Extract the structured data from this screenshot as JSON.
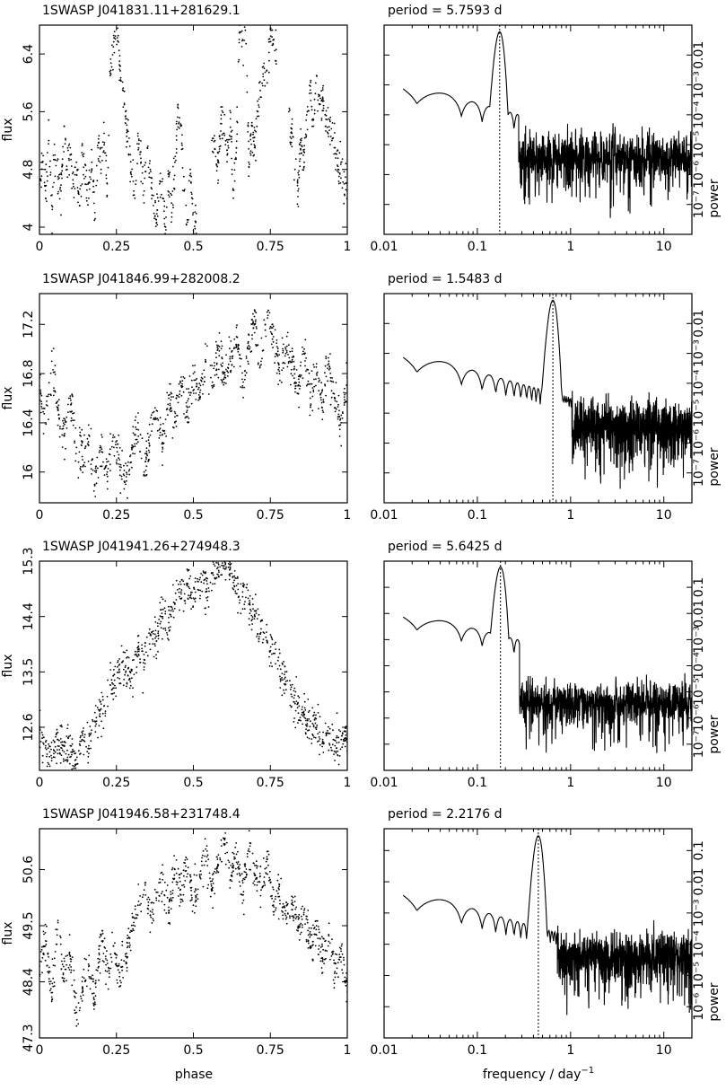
{
  "figure": {
    "xlabel_left": "phase",
    "xlabel_right": "frequency / day",
    "xlabel_right_exponent": "−1",
    "ylabel_left": "flux",
    "ylabel_right": "power"
  },
  "chart_data": [
    {
      "type": "scatter",
      "title": "1SWASP J041831.11+281629.1",
      "xlabel": "",
      "ylabel": "flux",
      "xlim": [
        0,
        1
      ],
      "ylim": [
        3.9,
        6.8
      ],
      "xticks": [
        0,
        0.25,
        0.5,
        0.75,
        1
      ],
      "xtick_labels": [
        "0",
        "0.25",
        "0.5",
        "0.75",
        "1"
      ],
      "yticks": [
        4,
        4.8,
        5.6,
        6.4
      ],
      "ytick_labels": [
        "4",
        "4.8",
        "5.6",
        "6.4"
      ],
      "points": [
        [
          0.0,
          4.6
        ],
        [
          0.01,
          4.9
        ],
        [
          0.02,
          4.4
        ],
        [
          0.03,
          5.2
        ],
        [
          0.04,
          4.3
        ],
        [
          0.05,
          5.0
        ],
        [
          0.06,
          4.7
        ],
        [
          0.07,
          4.5
        ],
        [
          0.08,
          5.4
        ],
        [
          0.09,
          4.8
        ],
        [
          0.1,
          5.1
        ],
        [
          0.11,
          4.6
        ],
        [
          0.12,
          4.9
        ],
        [
          0.13,
          4.3
        ],
        [
          0.14,
          5.0
        ],
        [
          0.15,
          4.7
        ],
        [
          0.16,
          4.4
        ],
        [
          0.17,
          4.9
        ],
        [
          0.18,
          4.2
        ],
        [
          0.19,
          5.1
        ],
        [
          0.2,
          4.8
        ],
        [
          0.21,
          5.3
        ],
        [
          0.22,
          4.6
        ],
        [
          0.23,
          6.1
        ],
        [
          0.24,
          6.5
        ],
        [
          0.25,
          6.9
        ],
        [
          0.26,
          6.3
        ],
        [
          0.27,
          5.9
        ],
        [
          0.28,
          5.5
        ],
        [
          0.29,
          5.0
        ],
        [
          0.3,
          4.7
        ],
        [
          0.31,
          4.4
        ],
        [
          0.32,
          5.3
        ],
        [
          0.33,
          4.9
        ],
        [
          0.34,
          4.5
        ],
        [
          0.35,
          5.1
        ],
        [
          0.36,
          4.8
        ],
        [
          0.37,
          4.3
        ],
        [
          0.38,
          4.1
        ],
        [
          0.39,
          4.6
        ],
        [
          0.4,
          4.4
        ],
        [
          0.41,
          4.0
        ],
        [
          0.42,
          4.7
        ],
        [
          0.43,
          4.2
        ],
        [
          0.44,
          4.9
        ],
        [
          0.45,
          5.7
        ],
        [
          0.46,
          5.4
        ],
        [
          0.47,
          4.5
        ],
        [
          0.48,
          4.1
        ],
        [
          0.49,
          4.8
        ],
        [
          0.5,
          3.95
        ],
        [
          0.57,
          5.2
        ],
        [
          0.58,
          4.9
        ],
        [
          0.59,
          5.5
        ],
        [
          0.6,
          5.3
        ],
        [
          0.61,
          5.0
        ],
        [
          0.62,
          5.5
        ],
        [
          0.63,
          4.4
        ],
        [
          0.64,
          5.1
        ],
        [
          0.65,
          6.8
        ],
        [
          0.66,
          6.6
        ],
        [
          0.67,
          6.9
        ],
        [
          0.68,
          4.9
        ],
        [
          0.69,
          5.4
        ],
        [
          0.7,
          5.1
        ],
        [
          0.71,
          5.6
        ],
        [
          0.72,
          5.8
        ],
        [
          0.73,
          6.2
        ],
        [
          0.74,
          6.0
        ],
        [
          0.75,
          6.8
        ],
        [
          0.76,
          6.6
        ],
        [
          0.82,
          5.3
        ],
        [
          0.83,
          4.8
        ],
        [
          0.84,
          4.5
        ],
        [
          0.85,
          5.2
        ],
        [
          0.86,
          4.9
        ],
        [
          0.87,
          5.6
        ],
        [
          0.88,
          5.9
        ],
        [
          0.89,
          5.4
        ],
        [
          0.9,
          6.1
        ],
        [
          0.91,
          5.7
        ],
        [
          0.92,
          5.8
        ],
        [
          0.93,
          5.4
        ],
        [
          0.94,
          5.5
        ],
        [
          0.95,
          5.2
        ],
        [
          0.96,
          5.1
        ],
        [
          0.97,
          4.8
        ],
        [
          0.98,
          4.9
        ],
        [
          0.99,
          4.6
        ],
        [
          1.0,
          4.5
        ]
      ]
    },
    {
      "type": "line",
      "title": "period =   5.7593 d",
      "xlabel": "",
      "ylabel": "power",
      "xscale": "log",
      "yscale": "log",
      "xlim": [
        0.01,
        20
      ],
      "ylim": [
        1e-08,
        0.1
      ],
      "period_days": 5.7593,
      "peak_frequency": 0.1736,
      "xticks": [
        0.01,
        0.1,
        1,
        10
      ],
      "xtick_labels": [
        "0.01",
        "0.1",
        "1",
        "10"
      ],
      "yticks": [
        1e-07,
        1e-06,
        1e-05,
        0.0001,
        0.001,
        0.01
      ],
      "ytick_labels": [
        "10⁻⁷",
        "10⁻⁶",
        "10⁻⁵",
        "10⁻⁴",
        "10⁻³",
        "0.01"
      ]
    },
    {
      "type": "scatter",
      "title": "1SWASP J041846.99+282008.2",
      "xlabel": "",
      "ylabel": "flux",
      "xlim": [
        0,
        1
      ],
      "ylim": [
        15.75,
        17.45
      ],
      "xticks": [
        0,
        0.25,
        0.5,
        0.75,
        1
      ],
      "xtick_labels": [
        "0",
        "0.25",
        "0.5",
        "0.75",
        "1"
      ],
      "yticks": [
        16,
        16.4,
        16.8,
        17.2
      ],
      "ytick_labels": [
        "16",
        "16.4",
        "16.8",
        "17.2"
      ],
      "points": [
        [
          0.0,
          16.7
        ],
        [
          0.02,
          16.4
        ],
        [
          0.04,
          16.9
        ],
        [
          0.06,
          16.5
        ],
        [
          0.08,
          16.3
        ],
        [
          0.1,
          16.6
        ],
        [
          0.12,
          16.2
        ],
        [
          0.14,
          16.1
        ],
        [
          0.16,
          16.3
        ],
        [
          0.18,
          15.9
        ],
        [
          0.2,
          16.2
        ],
        [
          0.22,
          16.0
        ],
        [
          0.24,
          16.3
        ],
        [
          0.26,
          16.1
        ],
        [
          0.28,
          15.9
        ],
        [
          0.3,
          16.2
        ],
        [
          0.32,
          16.4
        ],
        [
          0.34,
          16.0
        ],
        [
          0.36,
          16.3
        ],
        [
          0.38,
          16.5
        ],
        [
          0.4,
          16.2
        ],
        [
          0.42,
          16.6
        ],
        [
          0.44,
          16.4
        ],
        [
          0.46,
          16.7
        ],
        [
          0.48,
          16.5
        ],
        [
          0.5,
          16.8
        ],
        [
          0.52,
          16.6
        ],
        [
          0.54,
          16.9
        ],
        [
          0.56,
          16.7
        ],
        [
          0.58,
          17.0
        ],
        [
          0.6,
          16.8
        ],
        [
          0.62,
          16.9
        ],
        [
          0.64,
          17.1
        ],
        [
          0.66,
          16.7
        ],
        [
          0.68,
          17.0
        ],
        [
          0.7,
          17.2
        ],
        [
          0.72,
          16.9
        ],
        [
          0.74,
          17.3
        ],
        [
          0.76,
          17.1
        ],
        [
          0.78,
          16.8
        ],
        [
          0.8,
          17.0
        ],
        [
          0.82,
          16.9
        ],
        [
          0.84,
          16.7
        ],
        [
          0.86,
          17.0
        ],
        [
          0.88,
          16.6
        ],
        [
          0.9,
          16.8
        ],
        [
          0.92,
          16.5
        ],
        [
          0.94,
          16.9
        ],
        [
          0.96,
          16.6
        ],
        [
          0.98,
          16.4
        ],
        [
          1.0,
          16.7
        ]
      ]
    },
    {
      "type": "line",
      "title": "period =   1.5483 d",
      "xlabel": "",
      "ylabel": "power",
      "xscale": "log",
      "yscale": "log",
      "xlim": [
        0.01,
        20
      ],
      "ylim": [
        1e-08,
        0.1
      ],
      "period_days": 1.5483,
      "peak_frequency": 0.6459,
      "xticks": [
        0.01,
        0.1,
        1,
        10
      ],
      "xtick_labels": [
        "0.01",
        "0.1",
        "1",
        "10"
      ],
      "yticks": [
        1e-07,
        1e-06,
        1e-05,
        0.0001,
        0.001,
        0.01
      ],
      "ytick_labels": [
        "10⁻⁷",
        "10⁻⁶",
        "10⁻⁵",
        "10⁻⁴",
        "10⁻³",
        "0.01"
      ]
    },
    {
      "type": "scatter",
      "title": "1SWASP J041941.26+274948.3",
      "xlabel": "",
      "ylabel": "flux",
      "xlim": [
        0,
        1
      ],
      "ylim": [
        11.9,
        15.3
      ],
      "xticks": [
        0,
        0.25,
        0.5,
        0.75,
        1
      ],
      "xtick_labels": [
        "0",
        "0.25",
        "0.5",
        "0.75",
        "1"
      ],
      "yticks": [
        12.6,
        13.5,
        14.4,
        15.3
      ],
      "ytick_labels": [
        "12.6",
        "13.5",
        "14.4",
        "15.3"
      ],
      "points": [
        [
          0.0,
          12.5
        ],
        [
          0.02,
          12.3
        ],
        [
          0.04,
          12.1
        ],
        [
          0.06,
          12.4
        ],
        [
          0.08,
          12.2
        ],
        [
          0.1,
          12.3
        ],
        [
          0.12,
          12.0
        ],
        [
          0.14,
          12.5
        ],
        [
          0.16,
          12.3
        ],
        [
          0.18,
          12.7
        ],
        [
          0.2,
          12.9
        ],
        [
          0.22,
          13.1
        ],
        [
          0.24,
          13.3
        ],
        [
          0.26,
          13.5
        ],
        [
          0.28,
          13.6
        ],
        [
          0.3,
          13.4
        ],
        [
          0.32,
          13.9
        ],
        [
          0.34,
          13.7
        ],
        [
          0.36,
          14.1
        ],
        [
          0.38,
          14.0
        ],
        [
          0.4,
          14.4
        ],
        [
          0.42,
          14.3
        ],
        [
          0.44,
          14.6
        ],
        [
          0.46,
          14.8
        ],
        [
          0.48,
          14.9
        ],
        [
          0.5,
          14.7
        ],
        [
          0.52,
          15.0
        ],
        [
          0.54,
          14.8
        ],
        [
          0.56,
          15.1
        ],
        [
          0.58,
          15.2
        ],
        [
          0.6,
          15.3
        ],
        [
          0.62,
          15.2
        ],
        [
          0.64,
          14.9
        ],
        [
          0.66,
          14.8
        ],
        [
          0.68,
          14.6
        ],
        [
          0.7,
          14.4
        ],
        [
          0.72,
          14.2
        ],
        [
          0.74,
          14.0
        ],
        [
          0.76,
          13.8
        ],
        [
          0.78,
          13.6
        ],
        [
          0.8,
          13.3
        ],
        [
          0.82,
          13.1
        ],
        [
          0.84,
          13.0
        ],
        [
          0.86,
          12.8
        ],
        [
          0.88,
          12.7
        ],
        [
          0.9,
          12.6
        ],
        [
          0.92,
          12.4
        ],
        [
          0.94,
          12.5
        ],
        [
          0.96,
          12.3
        ],
        [
          0.98,
          12.4
        ],
        [
          1.0,
          12.5
        ]
      ]
    },
    {
      "type": "line",
      "title": "period =   5.6425 d",
      "xlabel": "",
      "ylabel": "power",
      "xscale": "log",
      "yscale": "log",
      "xlim": [
        0.01,
        20
      ],
      "ylim": [
        1e-08,
        1
      ],
      "period_days": 5.6425,
      "peak_frequency": 0.1772,
      "xticks": [
        0.01,
        0.1,
        1,
        10
      ],
      "xtick_labels": [
        "0.01",
        "0.1",
        "1",
        "10"
      ],
      "yticks": [
        1e-07,
        1e-06,
        1e-05,
        0.0001,
        0.001,
        0.01,
        0.1
      ],
      "ytick_labels": [
        "10⁻⁷",
        "10⁻⁶",
        "10⁻⁵",
        "10⁻⁴",
        "10⁻³",
        "0.01",
        "0.1"
      ]
    },
    {
      "type": "scatter",
      "title": "1SWASP J041946.58+231748.4",
      "xlabel": "phase",
      "ylabel": "flux",
      "xlim": [
        0,
        1
      ],
      "ylim": [
        47.3,
        51.4
      ],
      "xticks": [
        0,
        0.25,
        0.5,
        0.75,
        1
      ],
      "xtick_labels": [
        "0",
        "0.25",
        "0.5",
        "0.75",
        "1"
      ],
      "yticks": [
        47.3,
        48.4,
        49.5,
        50.6
      ],
      "ytick_labels": [
        "47.3",
        "48.4",
        "49.5",
        "50.6"
      ],
      "points": [
        [
          0.0,
          48.6
        ],
        [
          0.02,
          49.2
        ],
        [
          0.04,
          48.1
        ],
        [
          0.06,
          49.6
        ],
        [
          0.08,
          48.4
        ],
        [
          0.1,
          48.9
        ],
        [
          0.12,
          47.8
        ],
        [
          0.14,
          48.3
        ],
        [
          0.16,
          48.7
        ],
        [
          0.18,
          48.0
        ],
        [
          0.2,
          49.3
        ],
        [
          0.22,
          48.6
        ],
        [
          0.24,
          49.1
        ],
        [
          0.26,
          48.5
        ],
        [
          0.28,
          48.9
        ],
        [
          0.3,
          49.4
        ],
        [
          0.32,
          49.9
        ],
        [
          0.34,
          50.2
        ],
        [
          0.36,
          49.7
        ],
        [
          0.38,
          50.0
        ],
        [
          0.4,
          50.4
        ],
        [
          0.42,
          49.8
        ],
        [
          0.44,
          50.6
        ],
        [
          0.46,
          50.1
        ],
        [
          0.48,
          50.8
        ],
        [
          0.5,
          49.9
        ],
        [
          0.52,
          50.5
        ],
        [
          0.54,
          51.0
        ],
        [
          0.56,
          50.2
        ],
        [
          0.58,
          50.7
        ],
        [
          0.6,
          51.2
        ],
        [
          0.62,
          50.4
        ],
        [
          0.64,
          50.9
        ],
        [
          0.66,
          50.1
        ],
        [
          0.68,
          51.0
        ],
        [
          0.7,
          50.5
        ],
        [
          0.72,
          50.2
        ],
        [
          0.74,
          50.8
        ],
        [
          0.76,
          49.9
        ],
        [
          0.78,
          50.3
        ],
        [
          0.8,
          49.7
        ],
        [
          0.82,
          50.0
        ],
        [
          0.84,
          49.4
        ],
        [
          0.86,
          49.8
        ],
        [
          0.88,
          49.1
        ],
        [
          0.9,
          49.5
        ],
        [
          0.92,
          48.8
        ],
        [
          0.94,
          49.3
        ],
        [
          0.96,
          48.6
        ],
        [
          0.98,
          49.0
        ],
        [
          1.0,
          48.2
        ]
      ]
    },
    {
      "type": "line",
      "title": "period =   2.2176 d",
      "xlabel": "frequency / day⁻¹",
      "ylabel": "power",
      "xscale": "log",
      "yscale": "log",
      "xlim": [
        0.01,
        20
      ],
      "ylim": [
        1e-07,
        0.5
      ],
      "period_days": 2.2176,
      "peak_frequency": 0.4509,
      "xticks": [
        0.01,
        0.1,
        1,
        10
      ],
      "xtick_labels": [
        "0.01",
        "0.1",
        "1",
        "10"
      ],
      "yticks": [
        1e-06,
        1e-05,
        0.0001,
        0.001,
        0.01,
        0.1
      ],
      "ytick_labels": [
        "10⁻⁶",
        "10⁻⁵",
        "10⁻⁴",
        "10⁻³",
        "0.01",
        "0.1"
      ]
    }
  ]
}
